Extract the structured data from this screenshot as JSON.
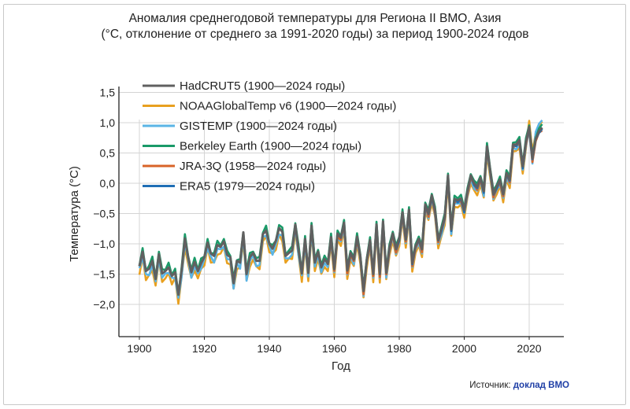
{
  "chart_data": {
    "type": "line",
    "title": "Аномалия среднегодовой температуры для Региона II ВМО, Азия",
    "subtitle": "(°C, отклонение от среднего за 1991-2020 годы) за период 1900-2024 годов",
    "xlabel": "Год",
    "ylabel": "Температура (°C)",
    "xlim": [
      1894,
      2032
    ],
    "ylim": [
      -2.5,
      1.5
    ],
    "x_ticks": [
      1900,
      1920,
      1940,
      1960,
      1980,
      2000,
      2020
    ],
    "x_tick_labels": [
      "1900",
      "1920",
      "1940",
      "1960",
      "1980",
      "2000",
      "2020"
    ],
    "y_ticks": [
      -2.0,
      -1.5,
      -1.0,
      -0.5,
      0.0,
      0.5,
      1.0,
      1.5
    ],
    "y_tick_labels": [
      "−2,0",
      "−1,5",
      "−1,0",
      "−0,5",
      "0,0",
      "0,5",
      "1,0",
      "1,5"
    ],
    "grid": true,
    "legend_position": "top-left",
    "series": [
      {
        "name": "HadCRUT5 (1900—2024 годы)",
        "color": "#606060",
        "start": 1900,
        "offset": 0.0
      },
      {
        "name": "NOAAGlobalTemp v6 (1900—2024 годы)",
        "color": "#e8a020",
        "start": 1900,
        "offset": -0.12
      },
      {
        "name": "GISTEMP (1900—2024 годы)",
        "color": "#5ab4e5",
        "start": 1900,
        "offset": -0.07
      },
      {
        "name": "Berkeley Earth (1900—2024 годы)",
        "color": "#1a9a68",
        "start": 1900,
        "offset": 0.04
      },
      {
        "name": "JRA-3Q (1958—2024 годы)",
        "color": "#d86428",
        "start": 1958,
        "offset": -0.04
      },
      {
        "name": "ERA5 (1979—2024 годы)",
        "color": "#1f6eb5",
        "start": 1979,
        "offset": -0.02
      }
    ],
    "years_start": 1900,
    "base_values": [
      -1.37,
      -1.13,
      -1.45,
      -1.41,
      -1.28,
      -1.58,
      -1.17,
      -1.49,
      -1.45,
      -1.39,
      -1.53,
      -1.47,
      -1.84,
      -1.44,
      -0.91,
      -1.22,
      -1.47,
      -1.3,
      -1.45,
      -1.32,
      -1.22,
      -0.98,
      -1.16,
      -1.2,
      -1.02,
      -1.05,
      -0.96,
      -1.18,
      -1.22,
      -1.65,
      -1.28,
      -1.31,
      -0.81,
      -1.5,
      -1.22,
      -1.15,
      -1.28,
      -1.28,
      -0.84,
      -0.78,
      -1.0,
      -1.08,
      -0.95,
      -0.74,
      -0.8,
      -1.2,
      -1.15,
      -1.11,
      -0.68,
      -1.1,
      -1.49,
      -0.92,
      -1.48,
      -0.7,
      -1.31,
      -1.13,
      -1.39,
      -1.25,
      -1.33,
      -0.89,
      -1.42,
      -0.83,
      -0.9,
      -0.65,
      -1.44,
      -1.15,
      -1.26,
      -0.88,
      -1.2,
      -1.78,
      -1.26,
      -0.94,
      -1.5,
      -0.68,
      -1.5,
      -0.63,
      -1.48,
      -1.06,
      -0.83,
      -1.09,
      -0.91,
      -0.48,
      -0.93,
      -0.44,
      -1.32,
      -1.04,
      -0.92,
      -1.09,
      -0.35,
      -0.5,
      -0.2,
      -0.44,
      -0.94,
      -0.76,
      -0.55,
      0.13,
      -0.76,
      -0.26,
      -0.28,
      -0.25,
      -0.44,
      -0.13,
      0.13,
      0.0,
      -0.06,
      0.09,
      -0.13,
      0.61,
      0.21,
      -0.18,
      -0.05,
      0.06,
      -0.18,
      0.17,
      0.06,
      0.64,
      0.64,
      0.71,
      0.28,
      0.69,
      0.93,
      0.41,
      0.73,
      0.86,
      0.92
    ]
  },
  "footer": {
    "source_label": "Источник:",
    "source_link": "доклад ВМО"
  }
}
